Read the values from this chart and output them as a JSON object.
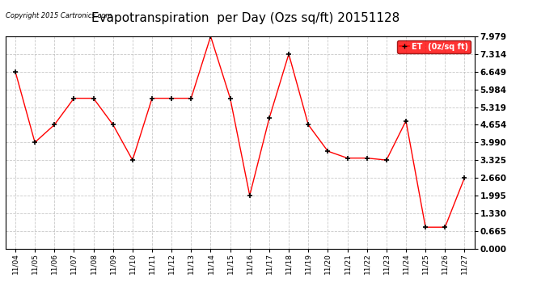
{
  "title": "Evapotranspiration  per Day (Ozs sq/ft) 20151128",
  "copyright_text": "Copyright 2015 Cartronics.com",
  "legend_label": "ET  (0z/sq ft)",
  "x_labels": [
    "11/04",
    "11/05",
    "11/06",
    "11/07",
    "11/08",
    "11/09",
    "11/10",
    "11/11",
    "11/12",
    "11/13",
    "11/14",
    "11/15",
    "11/16",
    "11/17",
    "11/18",
    "11/19",
    "11/20",
    "11/21",
    "11/22",
    "11/23",
    "11/24",
    "11/25",
    "11/26",
    "11/27"
  ],
  "y_values": [
    6.649,
    3.99,
    4.654,
    5.65,
    5.65,
    4.654,
    3.325,
    5.65,
    5.65,
    5.65,
    7.979,
    5.65,
    1.995,
    4.9,
    7.314,
    4.654,
    3.66,
    3.4,
    3.4,
    3.325,
    4.8,
    0.8,
    0.8,
    2.66
  ],
  "ylim": [
    0.0,
    7.979
  ],
  "yticks": [
    0.0,
    0.665,
    1.33,
    1.995,
    2.66,
    3.325,
    3.99,
    4.654,
    5.319,
    5.984,
    6.649,
    7.314,
    7.979
  ],
  "line_color": "red",
  "marker_color": "black",
  "marker": "+",
  "background_color": "#ffffff",
  "grid_color": "#bbbbbb",
  "title_fontsize": 11,
  "legend_bg": "red",
  "legend_text_color": "white"
}
